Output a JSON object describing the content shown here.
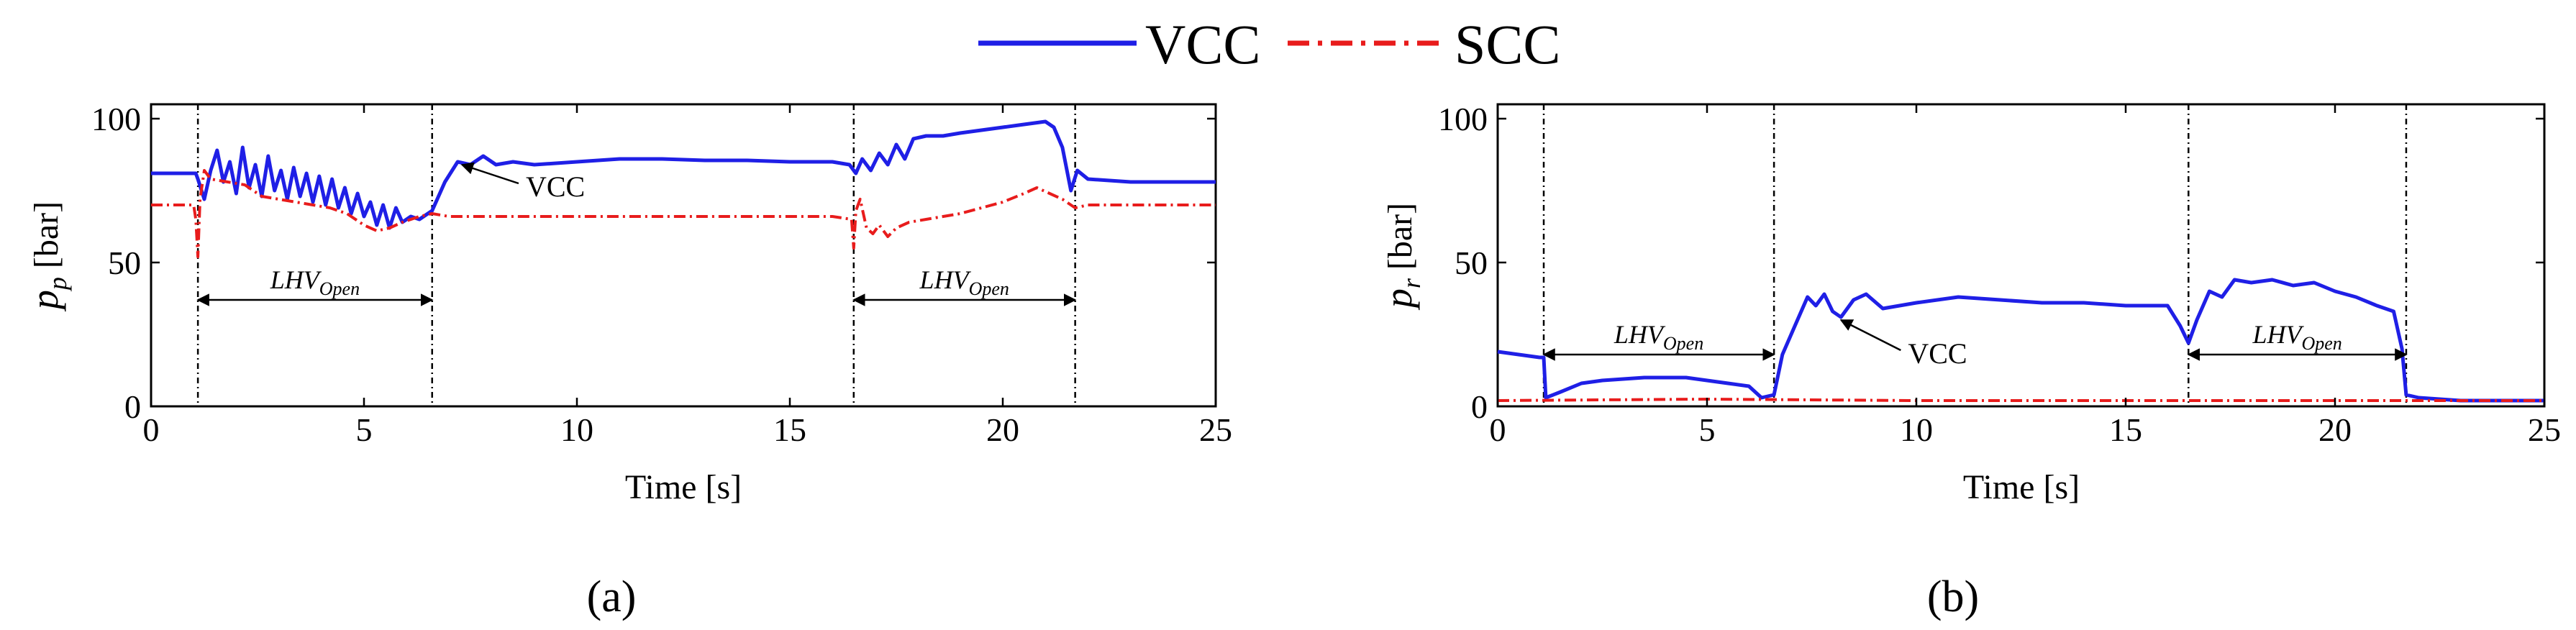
{
  "legend": {
    "items": [
      {
        "label": "VCC",
        "color": "#1f1fe6",
        "style": "solid"
      },
      {
        "label": "SCC",
        "color": "#e81c1c",
        "style": "dash-dot"
      }
    ]
  },
  "chart_data": [
    {
      "type": "line",
      "panel_label": "(a)",
      "xlabel": "Time [s]",
      "ylabel": {
        "main": "p",
        "sub": "p",
        "unit": " [bar]"
      },
      "xlim": [
        0,
        25
      ],
      "ylim": [
        0,
        105
      ],
      "xticks": [
        0,
        5,
        10,
        15,
        20,
        25
      ],
      "yticks": [
        0,
        50,
        100
      ],
      "event_lines": [
        1.1,
        6.6,
        16.5,
        21.7
      ],
      "spans": [
        {
          "start": 1.1,
          "end": 6.6,
          "label": "LHV",
          "sub": "Open",
          "y": 37
        },
        {
          "start": 16.5,
          "end": 21.7,
          "label": "LHV",
          "sub": "Open",
          "y": 37
        }
      ],
      "annotation": {
        "text": "VCC",
        "target": [
          7.3,
          84
        ],
        "text_at": [
          8.8,
          73
        ]
      },
      "series": [
        {
          "name": "VCC",
          "color": "#1f1fe6",
          "style": "solid",
          "points": [
            [
              0,
              81
            ],
            [
              1.05,
              81
            ],
            [
              1.1,
              79
            ],
            [
              1.25,
              72
            ],
            [
              1.4,
              82
            ],
            [
              1.55,
              89
            ],
            [
              1.7,
              78
            ],
            [
              1.85,
              85
            ],
            [
              2.0,
              74
            ],
            [
              2.15,
              90
            ],
            [
              2.3,
              76
            ],
            [
              2.45,
              84
            ],
            [
              2.6,
              73
            ],
            [
              2.75,
              87
            ],
            [
              2.9,
              75
            ],
            [
              3.05,
              82
            ],
            [
              3.2,
              72
            ],
            [
              3.35,
              83
            ],
            [
              3.5,
              73
            ],
            [
              3.65,
              81
            ],
            [
              3.8,
              71
            ],
            [
              3.95,
              80
            ],
            [
              4.1,
              70
            ],
            [
              4.25,
              79
            ],
            [
              4.4,
              69
            ],
            [
              4.55,
              76
            ],
            [
              4.7,
              67
            ],
            [
              4.85,
              74
            ],
            [
              5.0,
              66
            ],
            [
              5.15,
              71
            ],
            [
              5.3,
              63
            ],
            [
              5.45,
              70
            ],
            [
              5.6,
              62
            ],
            [
              5.75,
              69
            ],
            [
              5.9,
              64
            ],
            [
              6.1,
              66
            ],
            [
              6.3,
              65
            ],
            [
              6.6,
              68
            ],
            [
              6.9,
              78
            ],
            [
              7.2,
              85
            ],
            [
              7.5,
              84
            ],
            [
              7.8,
              87
            ],
            [
              8.1,
              84
            ],
            [
              8.5,
              85
            ],
            [
              9.0,
              84
            ],
            [
              10,
              85
            ],
            [
              11,
              86
            ],
            [
              12,
              86
            ],
            [
              13,
              85.5
            ],
            [
              14,
              85.5
            ],
            [
              15,
              85
            ],
            [
              16,
              85
            ],
            [
              16.4,
              84
            ],
            [
              16.55,
              81
            ],
            [
              16.7,
              86
            ],
            [
              16.9,
              82
            ],
            [
              17.1,
              88
            ],
            [
              17.3,
              84
            ],
            [
              17.5,
              91
            ],
            [
              17.7,
              86
            ],
            [
              17.9,
              93
            ],
            [
              18.2,
              94
            ],
            [
              18.6,
              94
            ],
            [
              19,
              95
            ],
            [
              19.5,
              96
            ],
            [
              20,
              97
            ],
            [
              20.5,
              98
            ],
            [
              21,
              99
            ],
            [
              21.2,
              97
            ],
            [
              21.4,
              90
            ],
            [
              21.6,
              75
            ],
            [
              21.75,
              82
            ],
            [
              22,
              79
            ],
            [
              23,
              78
            ],
            [
              24,
              78
            ],
            [
              25,
              78
            ]
          ]
        },
        {
          "name": "SCC",
          "color": "#e81c1c",
          "style": "dash-dot",
          "points": [
            [
              0,
              70
            ],
            [
              1.0,
              70
            ],
            [
              1.05,
              65
            ],
            [
              1.1,
              52
            ],
            [
              1.15,
              72
            ],
            [
              1.25,
              82
            ],
            [
              1.4,
              79
            ],
            [
              1.8,
              78
            ],
            [
              2.2,
              77
            ],
            [
              2.6,
              73
            ],
            [
              3.0,
              72
            ],
            [
              3.4,
              71
            ],
            [
              3.8,
              70
            ],
            [
              4.2,
              69
            ],
            [
              4.6,
              67
            ],
            [
              5.0,
              63
            ],
            [
              5.3,
              61
            ],
            [
              5.6,
              62
            ],
            [
              5.9,
              64
            ],
            [
              6.3,
              66
            ],
            [
              6.6,
              67
            ],
            [
              7,
              66
            ],
            [
              8,
              66
            ],
            [
              9,
              66
            ],
            [
              10,
              66
            ],
            [
              12,
              66
            ],
            [
              14,
              66
            ],
            [
              16,
              66
            ],
            [
              16.45,
              65
            ],
            [
              16.5,
              55
            ],
            [
              16.55,
              68
            ],
            [
              16.65,
              72
            ],
            [
              16.8,
              62
            ],
            [
              16.95,
              60
            ],
            [
              17.1,
              63
            ],
            [
              17.3,
              59
            ],
            [
              17.5,
              62
            ],
            [
              17.8,
              64
            ],
            [
              18.2,
              65
            ],
            [
              18.6,
              66
            ],
            [
              19,
              67
            ],
            [
              19.5,
              69
            ],
            [
              20,
              71
            ],
            [
              20.5,
              74
            ],
            [
              20.8,
              76
            ],
            [
              21.1,
              74
            ],
            [
              21.4,
              72
            ],
            [
              21.7,
              69
            ],
            [
              22,
              70
            ],
            [
              23,
              70
            ],
            [
              24,
              70
            ],
            [
              25,
              70
            ]
          ]
        }
      ]
    },
    {
      "type": "line",
      "panel_label": "(b)",
      "xlabel": "Time [s]",
      "ylabel": {
        "main": "p",
        "sub": "r",
        "unit": " [bar]"
      },
      "xlim": [
        0,
        25
      ],
      "ylim": [
        0,
        105
      ],
      "xticks": [
        0,
        5,
        10,
        15,
        20,
        25
      ],
      "yticks": [
        0,
        50,
        100
      ],
      "event_lines": [
        1.1,
        6.6,
        16.5,
        21.7
      ],
      "spans": [
        {
          "start": 1.1,
          "end": 6.6,
          "label": "LHV",
          "sub": "Open",
          "y": 18
        },
        {
          "start": 16.5,
          "end": 21.7,
          "label": "LHV",
          "sub": "Open",
          "y": 18
        }
      ],
      "annotation": {
        "text": "VCC",
        "target": [
          8.2,
          30
        ],
        "text_at": [
          9.8,
          15
        ]
      },
      "series": [
        {
          "name": "VCC",
          "color": "#1f1fe6",
          "style": "solid",
          "points": [
            [
              0,
              19
            ],
            [
              0.5,
              18
            ],
            [
              1.0,
              17
            ],
            [
              1.1,
              17
            ],
            [
              1.15,
              3
            ],
            [
              1.5,
              5
            ],
            [
              2.0,
              8
            ],
            [
              2.5,
              9
            ],
            [
              3.0,
              9.5
            ],
            [
              3.5,
              10
            ],
            [
              4.0,
              10
            ],
            [
              4.5,
              10
            ],
            [
              5.0,
              9
            ],
            [
              5.5,
              8
            ],
            [
              6.0,
              7
            ],
            [
              6.3,
              3
            ],
            [
              6.6,
              4
            ],
            [
              6.8,
              18
            ],
            [
              7.1,
              28
            ],
            [
              7.4,
              38
            ],
            [
              7.6,
              35
            ],
            [
              7.8,
              39
            ],
            [
              8.0,
              33
            ],
            [
              8.2,
              31
            ],
            [
              8.5,
              37
            ],
            [
              8.8,
              39
            ],
            [
              9.2,
              34
            ],
            [
              9.6,
              35
            ],
            [
              10,
              36
            ],
            [
              11,
              38
            ],
            [
              12,
              37
            ],
            [
              13,
              36
            ],
            [
              14,
              36
            ],
            [
              15,
              35
            ],
            [
              16,
              35
            ],
            [
              16.3,
              28
            ],
            [
              16.5,
              22
            ],
            [
              16.7,
              30
            ],
            [
              17.0,
              40
            ],
            [
              17.3,
              38
            ],
            [
              17.6,
              44
            ],
            [
              18,
              43
            ],
            [
              18.5,
              44
            ],
            [
              19,
              42
            ],
            [
              19.5,
              43
            ],
            [
              20,
              40
            ],
            [
              20.5,
              38
            ],
            [
              21,
              35
            ],
            [
              21.4,
              33
            ],
            [
              21.6,
              20
            ],
            [
              21.7,
              4
            ],
            [
              22,
              3
            ],
            [
              23,
              2
            ],
            [
              25,
              2
            ]
          ]
        },
        {
          "name": "SCC",
          "color": "#e81c1c",
          "style": "dash-dot",
          "points": [
            [
              0,
              2
            ],
            [
              5,
              2.5
            ],
            [
              10,
              2
            ],
            [
              15,
              2
            ],
            [
              20,
              2
            ],
            [
              25,
              2
            ]
          ]
        }
      ]
    }
  ]
}
